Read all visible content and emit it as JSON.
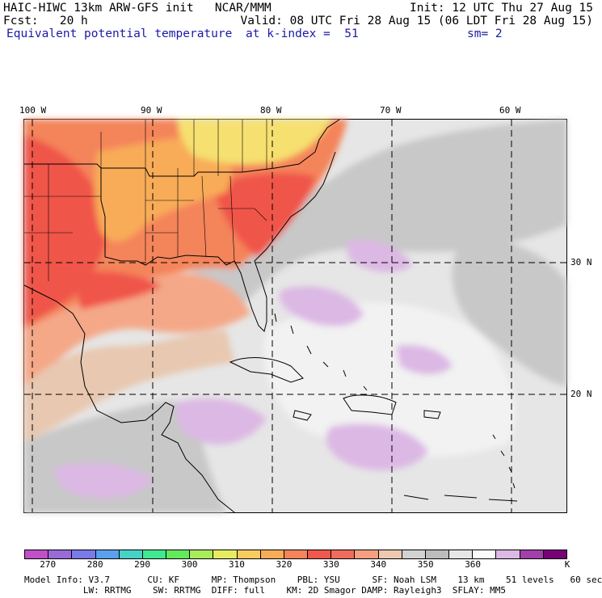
{
  "header": {
    "line1_left": "HAIC-HIWC 13km ARW-GFS init   NCAR/MMM",
    "line1_right": "Init: 12 UTC Thu 27 Aug 15",
    "line2_left": "Fcst:   20 h",
    "line2_right": "Valid: 08 UTC Fri 28 Aug 15 (06 LDT Fri 28 Aug 15)",
    "field_name": "Equivalent potential temperature",
    "level": "at k-index =  51",
    "smoothing": "sm= 2"
  },
  "axes": {
    "lon_labels": [
      "100 W",
      "90 W",
      "80 W",
      "70 W",
      "60 W"
    ],
    "lat_labels": [
      "30 N",
      "20 N"
    ]
  },
  "colorbar": {
    "unit": "K",
    "labels": [
      "270",
      "280",
      "290",
      "300",
      "310",
      "320",
      "330",
      "340",
      "350",
      "360"
    ],
    "colors": [
      "#c050c8",
      "#9a6ad8",
      "#7a7ae8",
      "#5aa0ee",
      "#46d2c6",
      "#40e890",
      "#64e85c",
      "#a8ec5a",
      "#e6ec60",
      "#f8cc5c",
      "#f8ac58",
      "#f4845a",
      "#f0584e",
      "#f06c5c",
      "#f4a080",
      "#eec8b0",
      "#d2d2d2",
      "#bcbcbc",
      "#e6e6e6",
      "#fafafa",
      "#dcb8e4",
      "#a040a8",
      "#780078"
    ]
  },
  "footer": {
    "line1": "Model Info: V3.7       CU: KF      MP: Thompson    PBL: YSU      SF: Noah LSM    13 km    51 levels   60 sec",
    "line2": "           LW: RRTMG    SW: RRTMG  DIFF: full    KM: 2D Smagor DAMP: Rayleigh3  SFLAY: MM5"
  },
  "map_colors": {
    "ocean_base": "#e6e6e6",
    "hot": "#f05448",
    "warm": "#f4845a",
    "orange": "#f8ac58",
    "yellow": "#f6e070",
    "peach": "#f4a888",
    "tan": "#e8c8b0",
    "gray": "#c8c8c8",
    "light": "#f2f2f2",
    "lilac": "#dcb8e4",
    "purple": "#a040a8"
  }
}
